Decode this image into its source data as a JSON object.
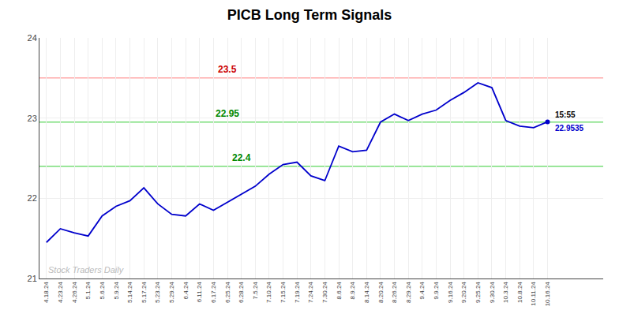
{
  "chart_data": {
    "type": "line",
    "title": "PICB Long Term Signals",
    "categories": [
      "4.18.24",
      "4.23.24",
      "4.26.24",
      "5.1.24",
      "5.6.24",
      "5.9.24",
      "5.14.24",
      "5.17.24",
      "5.23.24",
      "5.29.24",
      "6.4.24",
      "6.11.24",
      "6.17.24",
      "6.25.24",
      "6.28.24",
      "7.5.24",
      "7.10.24",
      "7.15.24",
      "7.19.24",
      "7.24.24",
      "7.30.24",
      "8.6.24",
      "8.9.24",
      "8.14.24",
      "8.20.24",
      "8.26.24",
      "8.29.24",
      "9.4.24",
      "9.9.24",
      "9.16.24",
      "9.20.24",
      "9.25.24",
      "9.30.24",
      "10.3.24",
      "10.8.24",
      "10.11.24",
      "10.16.24"
    ],
    "values": [
      21.45,
      21.62,
      21.57,
      21.53,
      21.78,
      21.9,
      21.97,
      22.13,
      21.93,
      21.8,
      21.78,
      21.93,
      21.85,
      21.95,
      22.05,
      22.15,
      22.3,
      22.42,
      22.45,
      22.28,
      22.22,
      22.65,
      22.58,
      22.6,
      22.95,
      23.05,
      22.97,
      23.05,
      23.1,
      23.22,
      23.32,
      23.44,
      23.38,
      22.97,
      22.9,
      22.88,
      22.9535
    ],
    "color": "#0000cc",
    "ylim": [
      21,
      24
    ],
    "yticks": [
      21,
      22,
      23,
      24
    ],
    "grid": true,
    "reference_lines": [
      {
        "value": 23.5,
        "label": "23.5",
        "color": "#ffaaaa",
        "label_color": "#cc0000",
        "label_at": "6.25.24"
      },
      {
        "value": 22.95,
        "label": "22.95",
        "color": "#77dd77",
        "label_color": "#008800",
        "label_at": "6.25.24"
      },
      {
        "value": 22.4,
        "label": "22.4",
        "color": "#77dd77",
        "label_color": "#008800",
        "label_at": "6.28.24"
      }
    ],
    "last_point_labels": [
      {
        "text": "15:55",
        "color": "#000000"
      },
      {
        "text": "22.9535",
        "color": "#0000cc"
      }
    ],
    "watermark": {
      "text": "Stock Traders Daily",
      "color": "#bbbbbb"
    }
  }
}
